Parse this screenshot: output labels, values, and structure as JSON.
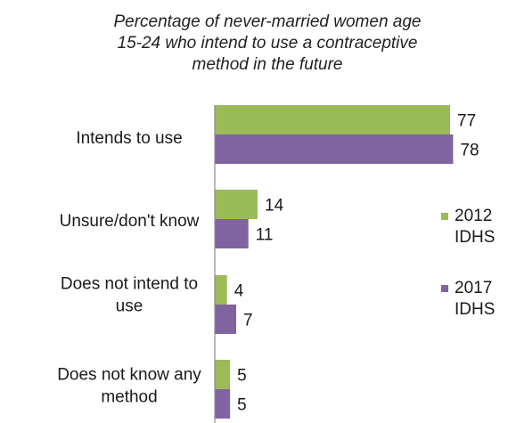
{
  "chart_data": {
    "type": "bar",
    "orientation": "horizontal",
    "title_lines": [
      "Percentage of never-married women age",
      "15-24 who intend to use a contraceptive",
      "method in the future"
    ],
    "categories": [
      [
        "Intends to use"
      ],
      [
        "Unsure/don't know"
      ],
      [
        "Does not intend to",
        "use"
      ],
      [
        "Does not know any",
        "method"
      ]
    ],
    "series": [
      {
        "name_lines": [
          "2012",
          "IDHS"
        ],
        "color": "#9bbb59",
        "values": [
          77,
          14,
          4,
          5
        ]
      },
      {
        "name_lines": [
          "2017",
          "IDHS"
        ],
        "color": "#8064a2",
        "values": [
          78,
          11,
          7,
          5
        ]
      }
    ],
    "xlim": [
      0,
      100
    ],
    "grid": false,
    "legend_position": "right"
  }
}
